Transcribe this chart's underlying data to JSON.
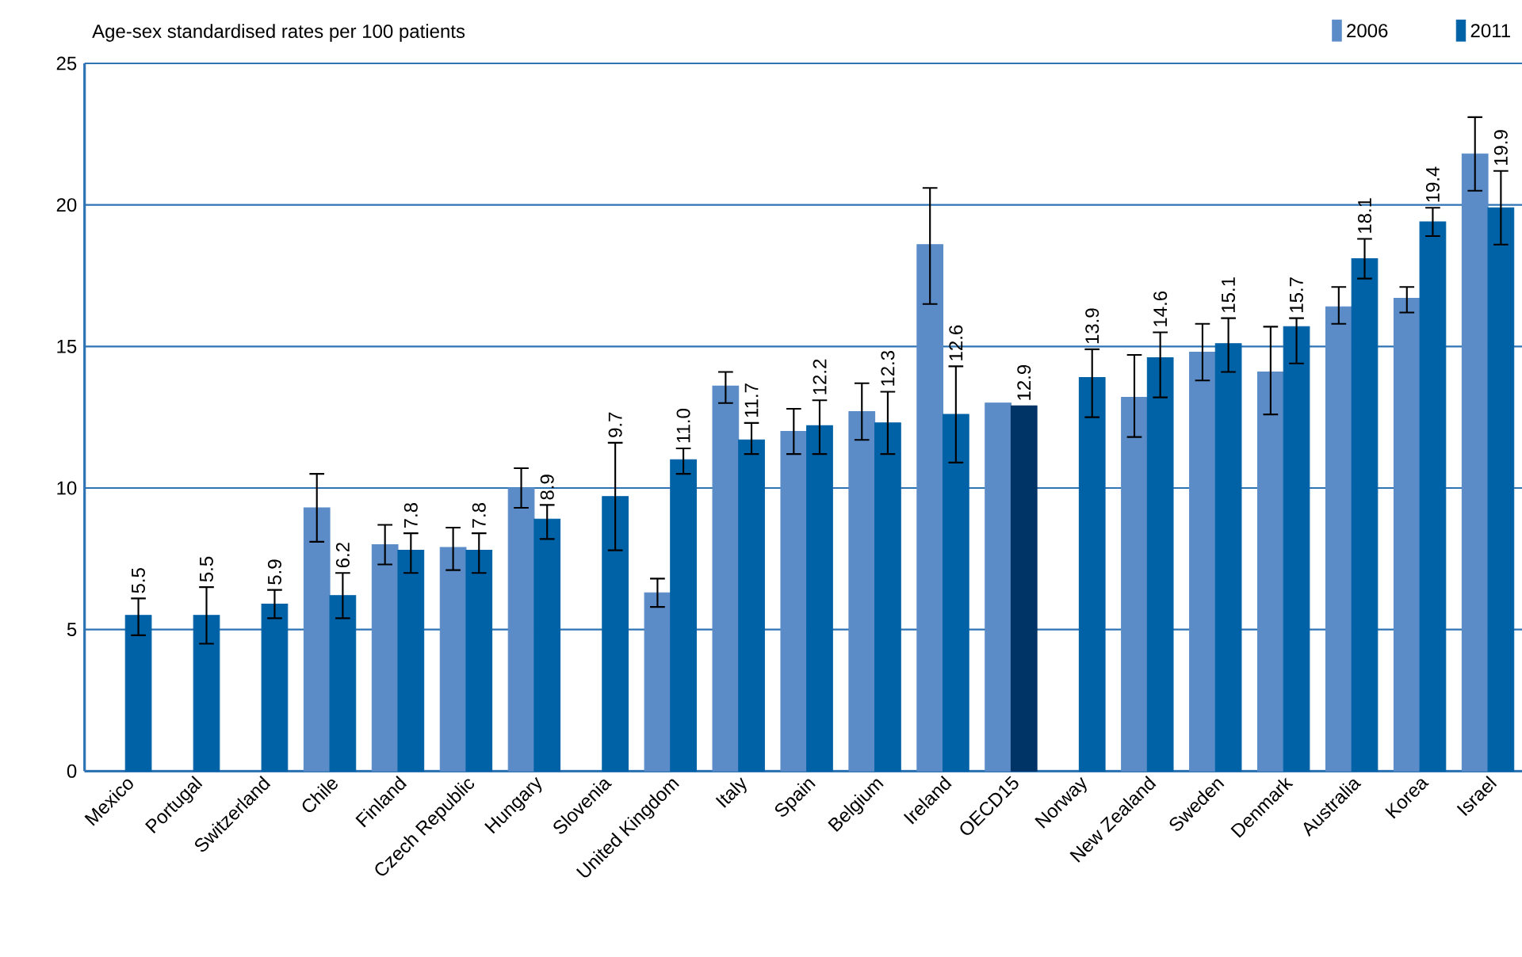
{
  "chart_data": {
    "type": "bar",
    "ylabel": "Age-sex standardised rates per 100 patients",
    "categories": [
      "Mexico",
      "Portugal",
      "Switzerland",
      "Chile",
      "Finland",
      "Czech Republic",
      "Hungary",
      "Slovenia",
      "United Kingdom",
      "Italy",
      "Spain",
      "Belgium",
      "Ireland",
      "OECD15",
      "Norway",
      "New Zealand",
      "Sweden",
      "Denmark",
      "Australia",
      "Korea",
      "Israel"
    ],
    "series": [
      {
        "name": "2006",
        "color": "#5b8cc8",
        "values": [
          null,
          null,
          null,
          9.3,
          8.0,
          7.9,
          10.0,
          null,
          6.3,
          13.6,
          12.0,
          12.7,
          18.6,
          13.0,
          null,
          13.2,
          14.8,
          14.1,
          16.4,
          16.7,
          21.8
        ],
        "errors": [
          null,
          null,
          null,
          [
            8.1,
            10.5
          ],
          [
            7.3,
            8.7
          ],
          [
            7.1,
            8.6
          ],
          [
            9.3,
            10.7
          ],
          null,
          [
            5.8,
            6.8
          ],
          [
            13.0,
            14.1
          ],
          [
            11.2,
            12.8
          ],
          [
            11.7,
            13.7
          ],
          [
            16.5,
            20.6
          ],
          null,
          null,
          [
            11.8,
            14.7
          ],
          [
            13.8,
            15.8
          ],
          [
            12.6,
            15.7
          ],
          [
            15.8,
            17.1
          ],
          [
            16.2,
            17.1
          ],
          [
            20.5,
            23.1
          ]
        ]
      },
      {
        "name": "2011",
        "color": "#0062a6",
        "colors": [
          "#0062a6",
          "#0062a6",
          "#0062a6",
          "#0062a6",
          "#0062a6",
          "#0062a6",
          "#0062a6",
          "#0062a6",
          "#0062a6",
          "#0062a6",
          "#0062a6",
          "#0062a6",
          "#0062a6",
          "#003366",
          "#0062a6",
          "#0062a6",
          "#0062a6",
          "#0062a6",
          "#0062a6",
          "#0062a6",
          "#0062a6"
        ],
        "values": [
          5.5,
          5.5,
          5.9,
          6.2,
          7.8,
          7.8,
          8.9,
          9.7,
          11.0,
          11.7,
          12.2,
          12.3,
          12.6,
          12.9,
          13.9,
          14.6,
          15.1,
          15.7,
          18.1,
          19.4,
          19.9
        ],
        "errors": [
          [
            4.8,
            6.1
          ],
          [
            4.5,
            6.5
          ],
          [
            5.4,
            6.4
          ],
          [
            5.4,
            7.0
          ],
          [
            7.0,
            8.4
          ],
          [
            7.0,
            8.4
          ],
          [
            8.2,
            9.4
          ],
          [
            7.8,
            11.6
          ],
          [
            10.5,
            11.4
          ],
          [
            11.2,
            12.3
          ],
          [
            11.2,
            13.1
          ],
          [
            11.2,
            13.4
          ],
          [
            10.9,
            14.3
          ],
          null,
          [
            12.5,
            14.9
          ],
          [
            13.2,
            15.5
          ],
          [
            14.1,
            16.0
          ],
          [
            14.4,
            16.0
          ],
          [
            17.4,
            18.8
          ],
          [
            18.9,
            19.9
          ],
          [
            18.6,
            21.2
          ]
        ],
        "value_labels": [
          "5.5",
          "5.5",
          "5.9",
          "6.2",
          "7.8",
          "7.8",
          "8.9",
          "9.7",
          "11.0",
          "11.7",
          "12.2",
          "12.3",
          "12.6",
          "12.9",
          "13.9",
          "14.6",
          "15.1",
          "15.7",
          "18.1",
          "19.4",
          "19.9"
        ]
      }
    ],
    "ylim": [
      0,
      25
    ],
    "yticks": [
      0,
      5,
      10,
      15,
      20,
      25
    ],
    "grid": "y",
    "legend": "top right"
  }
}
